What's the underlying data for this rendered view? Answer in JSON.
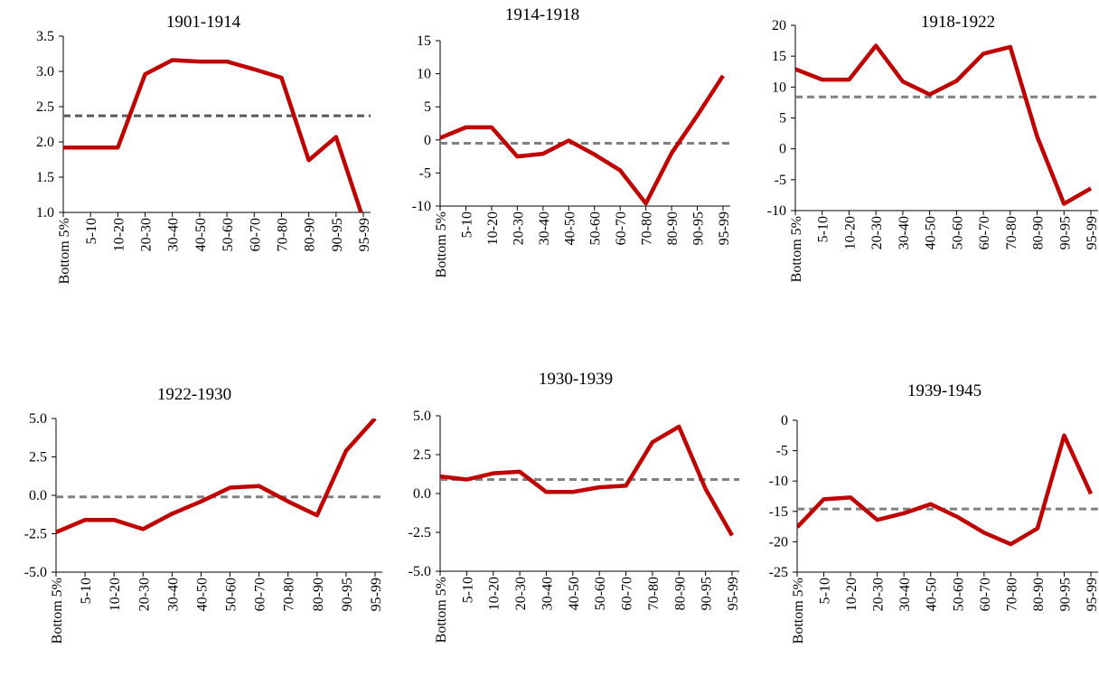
{
  "chart_data": [
    {
      "type": "line",
      "title": "1901-1914",
      "categories": [
        "Bottom 5%",
        "5-10",
        "10-20",
        "20-30",
        "30-40",
        "40-50",
        "50-60",
        "60-70",
        "70-80",
        "80-90",
        "90-95",
        "95-99"
      ],
      "values": [
        1.92,
        1.92,
        1.92,
        2.96,
        3.16,
        3.14,
        3.14,
        3.03,
        2.91,
        1.74,
        2.07,
        0.9
      ],
      "color": "#c00000",
      "hline": 2.37,
      "hline_color": "#595959",
      "ylim": [
        1.0,
        3.5
      ],
      "yticks": [
        {
          "value": 1,
          "label": "1.0"
        },
        {
          "value": 1.5,
          "label": "1.5"
        },
        {
          "value": 2,
          "label": "2.0"
        },
        {
          "value": 2.5,
          "label": "2.5"
        },
        {
          "value": 3,
          "label": "3.0"
        },
        {
          "value": 3.5,
          "label": "3.5"
        }
      ]
    },
    {
      "type": "line",
      "title": "1914-1918",
      "categories": [
        "Bottom 5%",
        "5-10",
        "10-20",
        "20-30",
        "30-40",
        "40-50",
        "50-60",
        "60-70",
        "70-80",
        "80-90",
        "90-95",
        "95-99"
      ],
      "values": [
        0.3,
        1.9,
        1.9,
        -2.5,
        -2.1,
        -0.1,
        -2.2,
        -4.6,
        -9.6,
        -2.0,
        3.7,
        9.7
      ],
      "color": "#c00000",
      "hline": -0.5,
      "hline_color": "#808080",
      "ylim": [
        -10,
        15
      ],
      "yticks": [
        -10,
        -5,
        0,
        5,
        10,
        15
      ]
    },
    {
      "type": "line",
      "title": "1918-1922",
      "categories": [
        "Bottom 5%",
        "5-10",
        "10-20",
        "20-30",
        "30-40",
        "40-50",
        "50-60",
        "60-70",
        "70-80",
        "80-90",
        "90-95",
        "95-99"
      ],
      "values": [
        12.9,
        11.2,
        11.2,
        16.7,
        10.9,
        8.8,
        11.0,
        15.4,
        16.5,
        2.0,
        -8.9,
        -6.4
      ],
      "color": "#c00000",
      "hline": 8.4,
      "hline_color": "#808080",
      "ylim": [
        -10,
        20
      ],
      "yticks": [
        -10,
        -5,
        0,
        5,
        10,
        15,
        20
      ]
    },
    {
      "type": "line",
      "title": "1922-1930",
      "categories": [
        "Bottom 5%",
        "5-10",
        "10-20",
        "20-30",
        "30-40",
        "40-50",
        "50-60",
        "60-70",
        "70-80",
        "80-90",
        "90-95",
        "95-99"
      ],
      "values": [
        -2.4,
        -1.6,
        -1.6,
        -2.2,
        -1.2,
        -0.4,
        0.5,
        0.6,
        -0.4,
        -1.3,
        2.9,
        5.0
      ],
      "color": "#c00000",
      "hline": -0.1,
      "hline_color": "#808080",
      "ylim": [
        -5,
        5
      ],
      "yticks": [
        {
          "value": -5,
          "label": "-5.0"
        },
        -2.5,
        {
          "value": 0,
          "label": "0.0"
        },
        2.5,
        {
          "value": 5,
          "label": "5.0"
        }
      ]
    },
    {
      "type": "line",
      "title": "1930-1939",
      "categories": [
        "Bottom 5%",
        "5-10",
        "10-20",
        "20-30",
        "30-40",
        "40-50",
        "50-60",
        "60-70",
        "70-80",
        "80-90",
        "90-95",
        "95-99"
      ],
      "values": [
        1.1,
        0.9,
        1.3,
        1.4,
        0.1,
        0.1,
        0.4,
        0.5,
        3.3,
        4.3,
        0.3,
        -2.7
      ],
      "color": "#c00000",
      "hline": 0.9,
      "hline_color": "#808080",
      "ylim": [
        -5,
        5
      ],
      "yticks": [
        {
          "value": -5,
          "label": "-5.0"
        },
        -2.5,
        {
          "value": 0,
          "label": "0.0"
        },
        2.5,
        {
          "value": 5,
          "label": "5.0"
        }
      ]
    },
    {
      "type": "line",
      "title": "1939-1945",
      "categories": [
        "Bottom 5%",
        "5-10",
        "10-20",
        "20-30",
        "30-40",
        "40-50",
        "50-60",
        "60-70",
        "70-80",
        "80-90",
        "90-95",
        "95-99"
      ],
      "values": [
        -17.6,
        -13.0,
        -12.7,
        -16.4,
        -15.3,
        -13.8,
        -15.9,
        -18.5,
        -20.4,
        -17.8,
        -2.5,
        -12.1
      ],
      "color": "#c00000",
      "hline": -14.6,
      "hline_color": "#808080",
      "ylim": [
        -25,
        0
      ],
      "yticks": [
        -25,
        -20,
        -15,
        -10,
        -5,
        0
      ]
    }
  ]
}
